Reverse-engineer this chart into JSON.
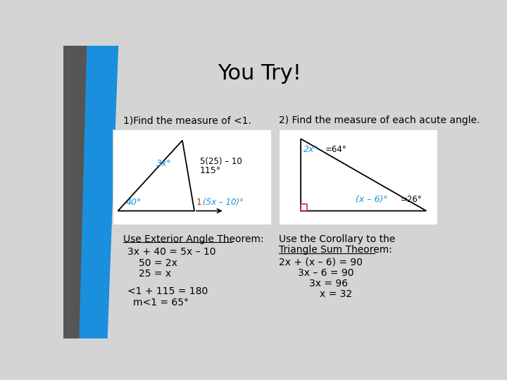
{
  "title": "You Try!",
  "title_fontsize": 22,
  "bg_color": "#d4d4d4",
  "q1_label": "1)Find the measure of <1.",
  "q2_label": "2) Find the measure of each acute angle.",
  "q1_text_block": [
    "Use Exterior Angle Theorem:",
    "3x + 40 = 5x – 10",
    "50 = 2x",
    "25 = x",
    "<1 + 115 = 180",
    "m<1 = 65°"
  ],
  "q2_text_block": [
    "Use the Corollary to the",
    "Triangle Sum Theorem:",
    "2x + (x – 6) = 90",
    "3x – 6 = 90",
    "3x = 96",
    "x = 32"
  ],
  "stripe_blue_color": "#1a8fdd",
  "stripe_dark_color": "#555555",
  "accent_blue": "#1a8fdd",
  "accent_red": "#cc2222"
}
